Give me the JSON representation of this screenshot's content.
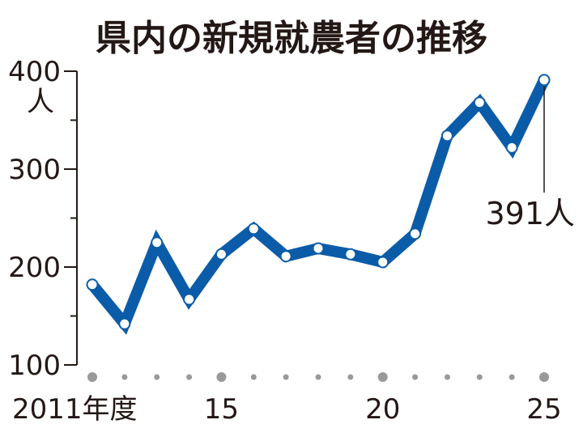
{
  "chart_data": {
    "type": "line",
    "title": "県内の新規就農者の推移",
    "ylabel": "人",
    "xlabel": "",
    "ylim": [
      100,
      400
    ],
    "y_ticks": [
      100,
      200,
      300,
      400
    ],
    "y_minor_ticks": [
      150,
      250,
      350
    ],
    "x": [
      2011,
      2012,
      2013,
      2014,
      2015,
      2016,
      2017,
      2018,
      2019,
      2020,
      2021,
      2022,
      2023,
      2024,
      2025
    ],
    "x_tick_labels": [
      {
        "x": 2011,
        "label": "2011年度"
      },
      {
        "x": 2015,
        "label": "15"
      },
      {
        "x": 2020,
        "label": "20"
      },
      {
        "x": 2025,
        "label": "25"
      }
    ],
    "series": [
      {
        "values": [
          182,
          142,
          225,
          167,
          213,
          239,
          211,
          219,
          213,
          205,
          234,
          334,
          368,
          322,
          391
        ]
      }
    ],
    "annotation": {
      "x": 2025,
      "text": "391人"
    },
    "line_color": "#0b5ca8",
    "axis_color": "#231815",
    "grid": false
  }
}
